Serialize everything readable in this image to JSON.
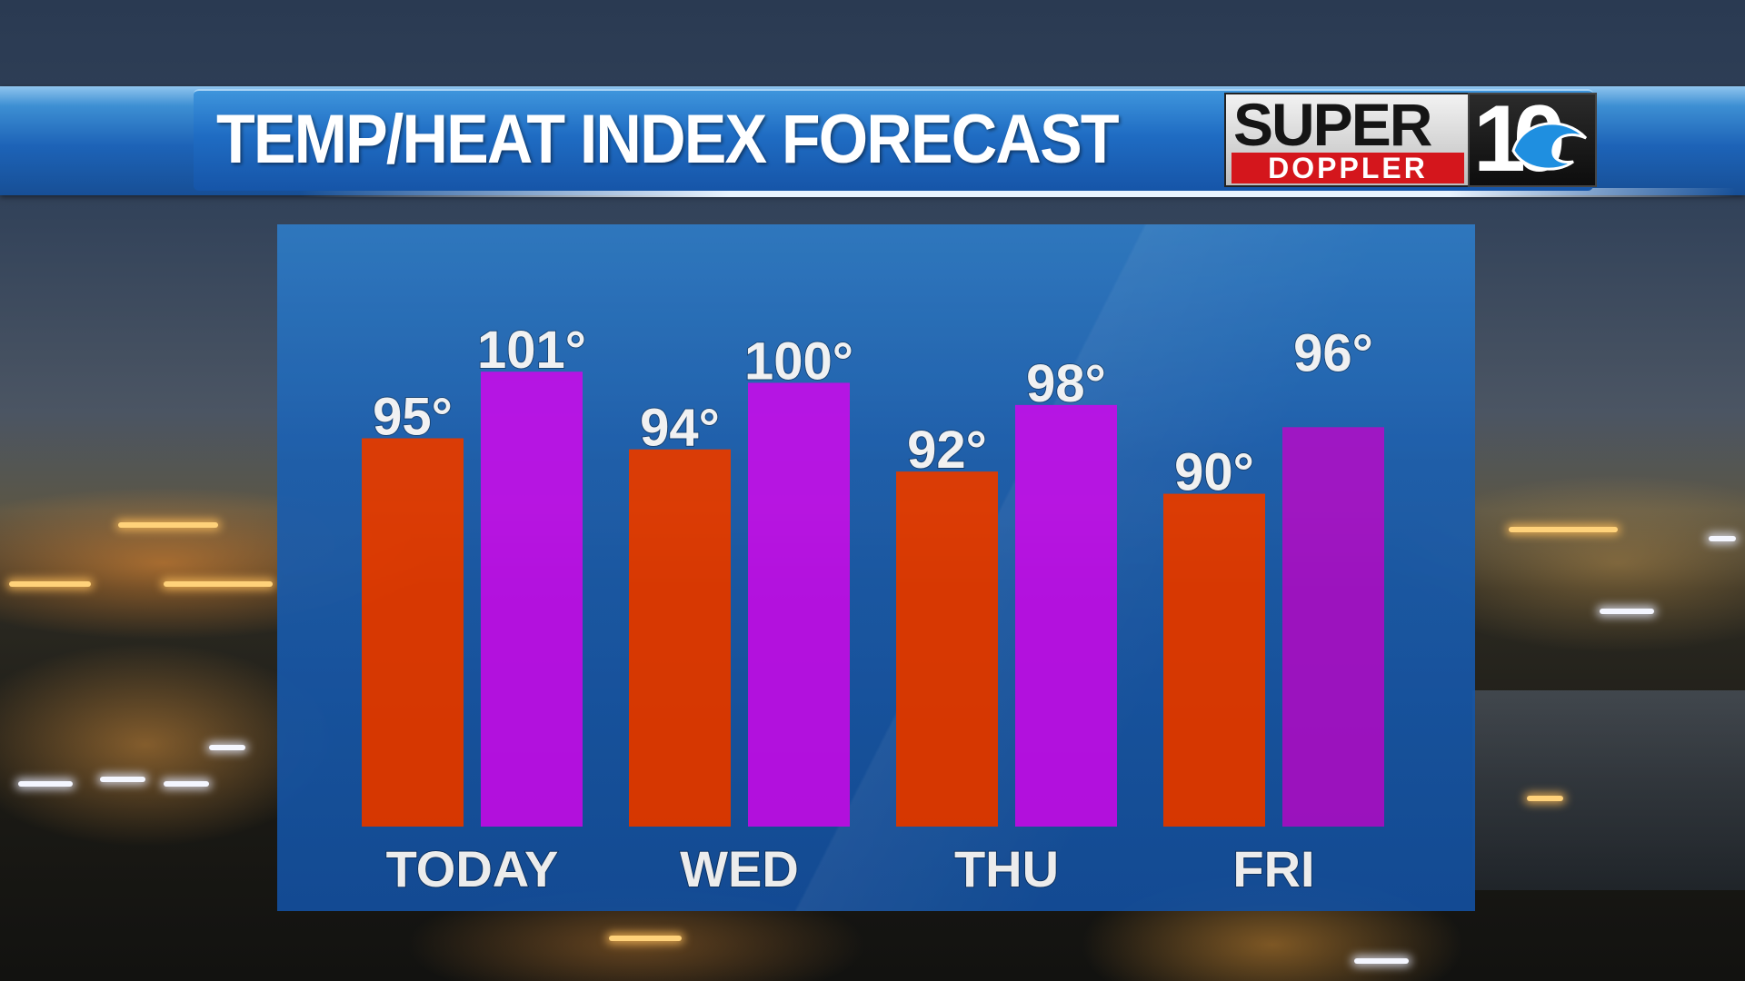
{
  "header": {
    "title": "TEMP/HEAT INDEX FORECAST"
  },
  "logo": {
    "super": "SUPER",
    "doppler": "DOPPLER",
    "ten": "10"
  },
  "colors": {
    "temp_bar": "#e63a00",
    "heat_index_bar": "#bf10ee",
    "heat_index_bar_alt": "#a612cc",
    "panel": "#1b5fb0",
    "banner": "#1f6cc3"
  },
  "chart_data": {
    "type": "bar",
    "categories": [
      "TODAY",
      "WED",
      "THU",
      "FRI"
    ],
    "series": [
      {
        "values": [
          95,
          94,
          92,
          90
        ],
        "labels": [
          "95°",
          "94°",
          "92°",
          "90°"
        ]
      },
      {
        "values": [
          101,
          100,
          98,
          96
        ],
        "labels": [
          "101°",
          "100°",
          "98°",
          "96°"
        ]
      }
    ],
    "ylim": [
      60,
      102
    ],
    "grid": false,
    "title": "TEMP/HEAT INDEX FORECAST"
  }
}
